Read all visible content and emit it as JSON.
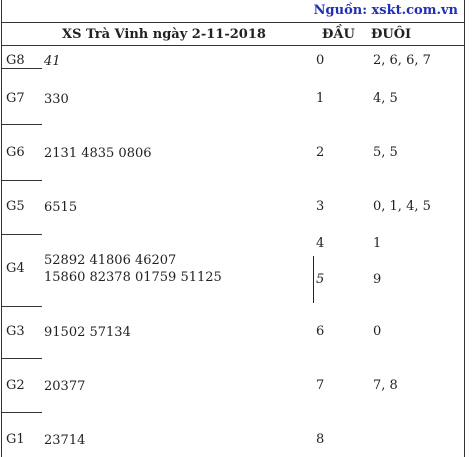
{
  "source": "Nguồn: xskt.com.vn",
  "header": {
    "title": "XS Trà Vinh ngày 2-11-2018",
    "dau": "ĐẦU",
    "duoi": "ĐUÔI"
  },
  "prizes": [
    {
      "label": "G8",
      "numbers": "41"
    },
    {
      "label": "G7",
      "numbers": "330"
    },
    {
      "label": "G6",
      "numbers": "2131 4835 0806"
    },
    {
      "label": "G5",
      "numbers": "6515"
    },
    {
      "label": "G4",
      "line1": "52892 41806 46207",
      "line2": "15860 82378 01759 51125"
    },
    {
      "label": "G3",
      "numbers": "91502 57134"
    },
    {
      "label": "G2",
      "numbers": "20377"
    },
    {
      "label": "G1",
      "numbers": "23714"
    }
  ],
  "loto": [
    {
      "dau": "0",
      "duoi": "2, 6, 6, 7"
    },
    {
      "dau": "1",
      "duoi": "4, 5"
    },
    {
      "dau": "2",
      "duoi": "5, 5"
    },
    {
      "dau": "3",
      "duoi": "0, 1, 4, 5"
    },
    {
      "dau": "4",
      "duoi": "1"
    },
    {
      "dau": "5",
      "duoi": "9"
    },
    {
      "dau": "6",
      "duoi": "0"
    },
    {
      "dau": "7",
      "duoi": "7, 8"
    },
    {
      "dau": "8",
      "duoi": ""
    }
  ]
}
